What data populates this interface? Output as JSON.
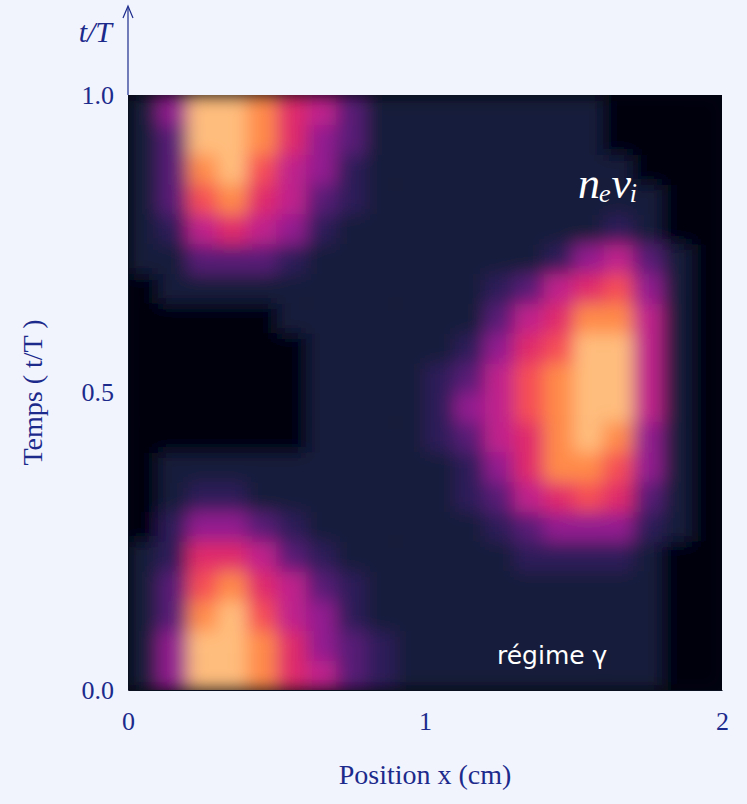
{
  "chart_data": {
    "type": "heatmap",
    "title": "nₑνᵢ",
    "xlabel": "Position x (cm)",
    "ylabel": "Temps ( t/T )",
    "annotations": [
      {
        "text": "t/T"
      },
      {
        "text": "régime γ"
      }
    ],
    "xlim": [
      0,
      2
    ],
    "xticks": [
      0,
      1,
      2
    ],
    "ylim": [
      0,
      1
    ],
    "yticks": [
      {
        "value": 0,
        "label": "0.0"
      },
      {
        "value": 0.5,
        "label": "0.5"
      },
      {
        "value": 1,
        "label": "1.0"
      }
    ],
    "x_bins": [
      0,
      0.1,
      0.2,
      0.3,
      0.4,
      0.5,
      0.6,
      0.7,
      0.8,
      0.9,
      1.0,
      1.1,
      1.2,
      1.3,
      1.4,
      1.5,
      1.6,
      1.7,
      1.8,
      1.9,
      2.0
    ],
    "y_bins": [
      0,
      0.05,
      0.1,
      0.15,
      0.2,
      0.25,
      0.3,
      0.35,
      0.4,
      0.45,
      0.5,
      0.55,
      0.6,
      0.65,
      0.7,
      0.75,
      0.8,
      0.85,
      0.9,
      0.95,
      1.0
    ],
    "zlim": [
      0,
      10
    ],
    "cells": [
      [
        1,
        4,
        9,
        9,
        8,
        6,
        5,
        3,
        2,
        1,
        1,
        1,
        1,
        1,
        1,
        1,
        1,
        1,
        0,
        0
      ],
      [
        1,
        4,
        9,
        9,
        8,
        6,
        4,
        3,
        2,
        1,
        1,
        1,
        1,
        1,
        1,
        1,
        1,
        1,
        0,
        0
      ],
      [
        1,
        3,
        8,
        9,
        7,
        5,
        4,
        2,
        1,
        1,
        1,
        1,
        1,
        1,
        1,
        1,
        1,
        1,
        0,
        0
      ],
      [
        1,
        3,
        7,
        8,
        6,
        5,
        3,
        2,
        1,
        1,
        1,
        1,
        1,
        1,
        1,
        1,
        1,
        1,
        0,
        0
      ],
      [
        1,
        2,
        6,
        6,
        5,
        3,
        2,
        1,
        1,
        1,
        1,
        1,
        1,
        2,
        2,
        2,
        2,
        1,
        0,
        0
      ],
      [
        0,
        2,
        4,
        4,
        3,
        2,
        1,
        1,
        1,
        1,
        1,
        1,
        2,
        3,
        4,
        4,
        4,
        2,
        1,
        0
      ],
      [
        0,
        1,
        2,
        2,
        1,
        1,
        1,
        1,
        1,
        1,
        1,
        2,
        3,
        5,
        6,
        7,
        6,
        3,
        1,
        0
      ],
      [
        0,
        1,
        1,
        1,
        1,
        1,
        1,
        1,
        1,
        1,
        1,
        2,
        4,
        6,
        8,
        8,
        7,
        4,
        1,
        0
      ],
      [
        0,
        0,
        0,
        0,
        0,
        0,
        1,
        1,
        1,
        1,
        2,
        3,
        5,
        6,
        8,
        9,
        8,
        4,
        1,
        0
      ],
      [
        0,
        0,
        0,
        0,
        0,
        0,
        1,
        1,
        1,
        1,
        2,
        4,
        5,
        7,
        8,
        9,
        9,
        5,
        1,
        0
      ],
      [
        0,
        0,
        0,
        0,
        0,
        0,
        1,
        1,
        1,
        1,
        2,
        3,
        5,
        7,
        8,
        9,
        9,
        5,
        1,
        0
      ],
      [
        0,
        0,
        0,
        0,
        0,
        0,
        1,
        1,
        1,
        1,
        1,
        2,
        4,
        6,
        7,
        9,
        9,
        5,
        1,
        0
      ],
      [
        0,
        0,
        0,
        0,
        0,
        1,
        1,
        1,
        1,
        1,
        1,
        1,
        3,
        5,
        6,
        8,
        8,
        5,
        1,
        0
      ],
      [
        0,
        1,
        1,
        1,
        1,
        1,
        1,
        1,
        1,
        1,
        1,
        1,
        2,
        3,
        5,
        6,
        7,
        4,
        1,
        0
      ],
      [
        1,
        1,
        3,
        3,
        3,
        2,
        1,
        1,
        1,
        1,
        1,
        1,
        1,
        1,
        2,
        4,
        5,
        3,
        1,
        0
      ],
      [
        1,
        2,
        5,
        6,
        5,
        4,
        2,
        1,
        1,
        1,
        1,
        1,
        1,
        1,
        1,
        1,
        2,
        1,
        0,
        0
      ],
      [
        1,
        3,
        7,
        8,
        6,
        5,
        3,
        2,
        1,
        1,
        1,
        1,
        1,
        1,
        1,
        1,
        1,
        1,
        0,
        0
      ],
      [
        1,
        3,
        8,
        9,
        7,
        5,
        4,
        2,
        1,
        1,
        1,
        1,
        1,
        1,
        1,
        1,
        1,
        0,
        0,
        0
      ],
      [
        1,
        3,
        9,
        9,
        8,
        6,
        4,
        3,
        1,
        1,
        1,
        1,
        1,
        1,
        1,
        1,
        0,
        0,
        0,
        0
      ],
      [
        1,
        4,
        9,
        9,
        8,
        6,
        5,
        3,
        1,
        1,
        1,
        1,
        1,
        1,
        1,
        1,
        0,
        0,
        0,
        0
      ]
    ]
  }
}
